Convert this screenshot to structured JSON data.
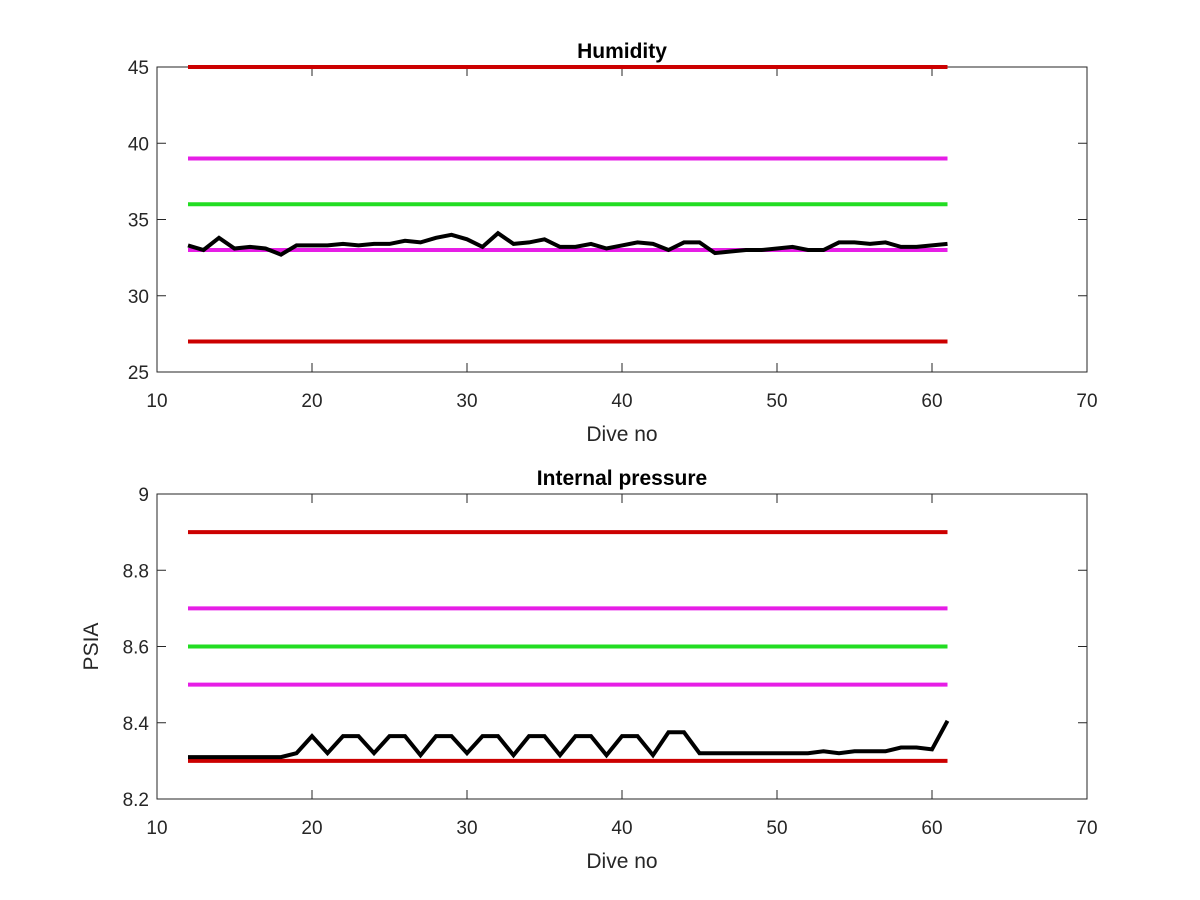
{
  "chart_data": [
    {
      "type": "line",
      "title": "Humidity",
      "xlabel": "Dive no",
      "ylabel": "",
      "xlim": [
        10,
        70
      ],
      "ylim": [
        25,
        45
      ],
      "xticks": [
        10,
        20,
        30,
        40,
        50,
        60,
        70
      ],
      "yticks": [
        25,
        30,
        35,
        40,
        45
      ],
      "grid": false,
      "series": [
        {
          "color": "#cc0000",
          "x": [
            12,
            61
          ],
          "y": [
            45,
            45
          ]
        },
        {
          "color": "#e61ee6",
          "x": [
            12,
            61
          ],
          "y": [
            39,
            39
          ]
        },
        {
          "color": "#22dd22",
          "x": [
            12,
            61
          ],
          "y": [
            36,
            36
          ]
        },
        {
          "color": "#e61ee6",
          "x": [
            12,
            61
          ],
          "y": [
            33,
            33
          ]
        },
        {
          "color": "#cc0000",
          "x": [
            12,
            61
          ],
          "y": [
            27,
            27
          ]
        },
        {
          "color": "#000000",
          "x": [
            12,
            13,
            14,
            15,
            16,
            17,
            18,
            19,
            20,
            21,
            22,
            23,
            24,
            25,
            26,
            27,
            28,
            29,
            30,
            31,
            32,
            33,
            34,
            35,
            36,
            37,
            38,
            39,
            40,
            41,
            42,
            43,
            44,
            45,
            46,
            47,
            48,
            49,
            50,
            51,
            52,
            53,
            54,
            55,
            56,
            57,
            58,
            59,
            60,
            61
          ],
          "y": [
            33.3,
            33.0,
            33.8,
            33.1,
            33.2,
            33.1,
            32.7,
            33.3,
            33.3,
            33.3,
            33.4,
            33.3,
            33.4,
            33.4,
            33.6,
            33.5,
            33.8,
            34.0,
            33.7,
            33.2,
            34.1,
            33.4,
            33.5,
            33.7,
            33.2,
            33.2,
            33.4,
            33.1,
            33.3,
            33.5,
            33.4,
            33.0,
            33.5,
            33.5,
            32.8,
            32.9,
            33.0,
            33.0,
            33.1,
            33.2,
            33.0,
            33.0,
            33.5,
            33.5,
            33.4,
            33.5,
            33.2,
            33.2,
            33.3,
            33.4
          ]
        }
      ]
    },
    {
      "type": "line",
      "title": "Internal pressure",
      "xlabel": "Dive no",
      "ylabel": "PSIA",
      "xlim": [
        10,
        70
      ],
      "ylim": [
        8.2,
        9
      ],
      "xticks": [
        10,
        20,
        30,
        40,
        50,
        60,
        70
      ],
      "yticks": [
        8.2,
        8.4,
        8.6,
        8.8,
        9
      ],
      "grid": false,
      "series": [
        {
          "color": "#cc0000",
          "x": [
            12,
            61
          ],
          "y": [
            8.9,
            8.9
          ]
        },
        {
          "color": "#e61ee6",
          "x": [
            12,
            61
          ],
          "y": [
            8.7,
            8.7
          ]
        },
        {
          "color": "#22dd22",
          "x": [
            12,
            61
          ],
          "y": [
            8.6,
            8.6
          ]
        },
        {
          "color": "#e61ee6",
          "x": [
            12,
            61
          ],
          "y": [
            8.5,
            8.5
          ]
        },
        {
          "color": "#cc0000",
          "x": [
            12,
            61
          ],
          "y": [
            8.3,
            8.3
          ]
        },
        {
          "color": "#000000",
          "x": [
            12,
            13,
            14,
            15,
            16,
            17,
            18,
            19,
            20,
            21,
            22,
            23,
            24,
            25,
            26,
            27,
            28,
            29,
            30,
            31,
            32,
            33,
            34,
            35,
            36,
            37,
            38,
            39,
            40,
            41,
            42,
            43,
            44,
            45,
            46,
            47,
            48,
            49,
            50,
            51,
            52,
            53,
            54,
            55,
            56,
            57,
            58,
            59,
            60,
            61
          ],
          "y": [
            8.31,
            8.31,
            8.31,
            8.31,
            8.31,
            8.31,
            8.31,
            8.32,
            8.365,
            8.32,
            8.365,
            8.365,
            8.32,
            8.365,
            8.365,
            8.315,
            8.365,
            8.365,
            8.32,
            8.365,
            8.365,
            8.315,
            8.365,
            8.365,
            8.315,
            8.365,
            8.365,
            8.315,
            8.365,
            8.365,
            8.315,
            8.375,
            8.375,
            8.32,
            8.32,
            8.32,
            8.32,
            8.32,
            8.32,
            8.32,
            8.32,
            8.325,
            8.32,
            8.325,
            8.325,
            8.325,
            8.335,
            8.335,
            8.33,
            8.405
          ]
        }
      ]
    }
  ]
}
